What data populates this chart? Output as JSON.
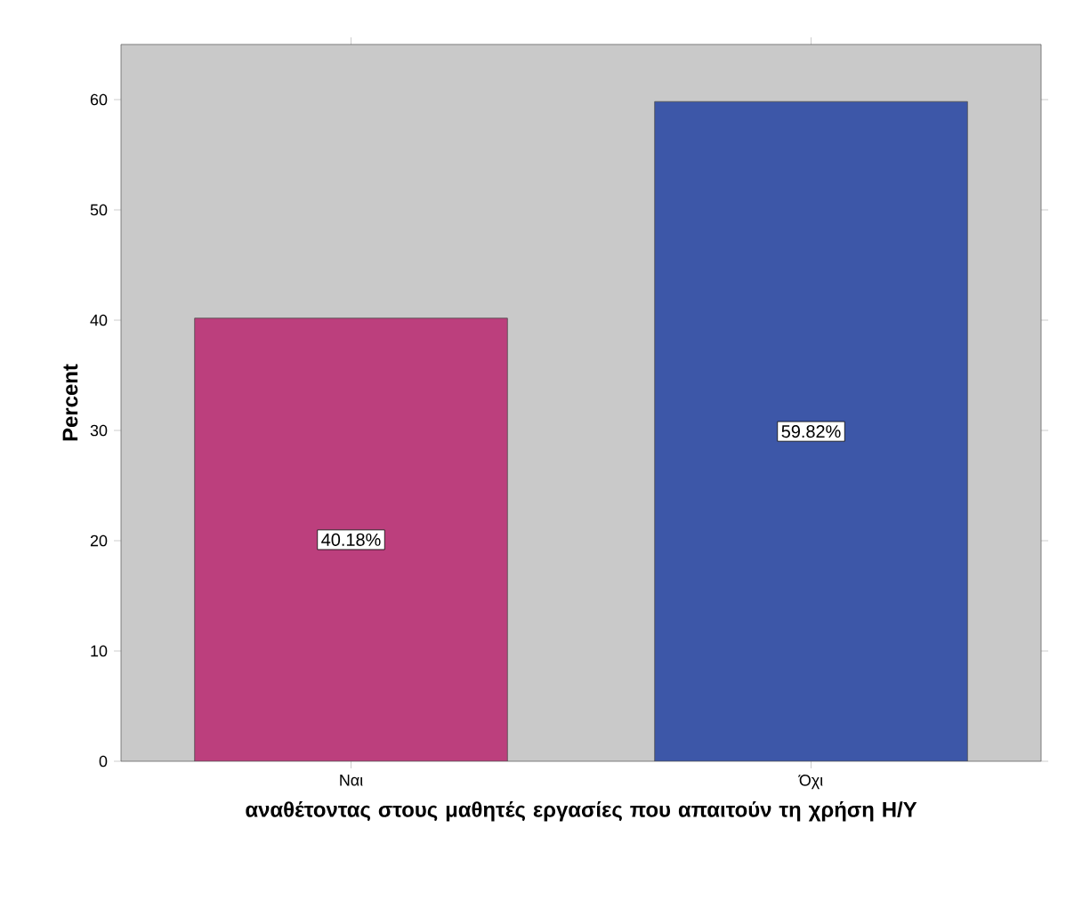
{
  "chart_data": {
    "type": "bar",
    "categories": [
      "Ναι",
      "Όχι"
    ],
    "values": [
      40.18,
      59.82
    ],
    "colors": [
      "#bc3f7d",
      "#3d57a8"
    ],
    "value_labels": [
      "40.18%",
      "59.82%"
    ],
    "xlabel": "αναθέτοντας στους μαθητές εργασίες που απαιτούν τη χρήση Η/Υ",
    "ylabel": "Percent",
    "ylim": [
      0,
      65
    ],
    "yticks": [
      0,
      10,
      20,
      30,
      40,
      50,
      60
    ]
  }
}
